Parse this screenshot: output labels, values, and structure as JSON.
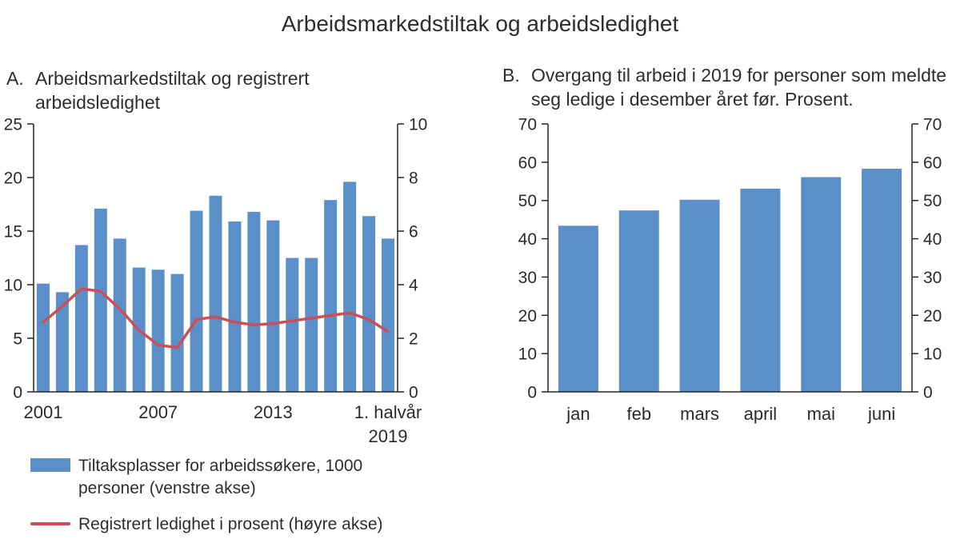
{
  "title": "Arbeidsmarkedstiltak og arbeidsledighet",
  "panel_a": {
    "letter": "A.",
    "heading": "Arbeidsmarkedstiltak og registrert arbeidsledighet"
  },
  "panel_b": {
    "letter": "B.",
    "heading": "Overgang til arbeid i 2019 for personer som meldte seg ledige i desember året før. Prosent."
  },
  "legend": {
    "bar": {
      "label": "Tiltaksplasser for arbeidssøkere, 1000 personer (venstre akse)",
      "color": "#5b8fc9"
    },
    "line": {
      "label": "Registrert ledighet i prosent (høyre akse)",
      "color": "#cb4f55"
    }
  },
  "style": {
    "axis_color": "#262626",
    "text_color": "#2b2b2b",
    "bar_color": "#5b8fc9",
    "line_color": "#cb4f55",
    "background": "#ffffff"
  },
  "chart_data": [
    {
      "id": "A",
      "type": "bar",
      "title": "A. Arbeidsmarkedstiltak og registrert arbeidsledighet",
      "x": [
        2001,
        2002,
        2003,
        2004,
        2005,
        2006,
        2007,
        2008,
        2009,
        2010,
        2011,
        2012,
        2013,
        2014,
        2015,
        2016,
        2017,
        2018,
        2019
      ],
      "series": [
        {
          "name": "Tiltaksplasser for arbeidssøkere, 1000 personer (venstre akse)",
          "type": "bar",
          "axis": "left",
          "color": "#5b8fc9",
          "values": [
            10.1,
            9.3,
            13.7,
            17.1,
            14.3,
            11.6,
            11.4,
            11.0,
            16.9,
            18.3,
            15.9,
            16.8,
            16.0,
            12.5,
            12.5,
            17.9,
            19.6,
            16.4,
            14.3
          ]
        },
        {
          "name": "Registrert ledighet i prosent (høyre akse)",
          "type": "line",
          "axis": "right",
          "color": "#cb4f55",
          "values": [
            2.6,
            3.2,
            3.85,
            3.75,
            3.1,
            2.3,
            1.75,
            1.65,
            2.7,
            2.8,
            2.6,
            2.5,
            2.55,
            2.65,
            2.75,
            2.85,
            2.95,
            2.7,
            2.25
          ]
        }
      ],
      "left_axis": {
        "min": 0,
        "max": 25,
        "ticks": [
          0,
          5,
          10,
          15,
          20,
          25
        ]
      },
      "right_axis": {
        "min": 0,
        "max": 10,
        "ticks": [
          0,
          2,
          4,
          6,
          8,
          10
        ]
      },
      "x_tick_labels": [
        {
          "index": 0,
          "lines": [
            "2001"
          ]
        },
        {
          "index": 6,
          "lines": [
            "2007"
          ]
        },
        {
          "index": 12,
          "lines": [
            "2013"
          ]
        },
        {
          "index": 18,
          "lines": [
            "1. halvår",
            "2019"
          ]
        }
      ],
      "grid": false,
      "legend_position": "below-left"
    },
    {
      "id": "B",
      "type": "bar",
      "title": "B. Overgang til arbeid i 2019 for personer som meldte seg ledige i desember året før. Prosent.",
      "categories": [
        "jan",
        "feb",
        "mars",
        "april",
        "mai",
        "juni"
      ],
      "values": [
        43.4,
        47.4,
        50.2,
        53.1,
        56.1,
        58.3
      ],
      "bar_color": "#5b8fc9",
      "left_axis": {
        "min": 0,
        "max": 70,
        "ticks": [
          0,
          10,
          20,
          30,
          40,
          50,
          60,
          70
        ]
      },
      "right_axis": {
        "min": 0,
        "max": 70,
        "ticks": [
          0,
          10,
          20,
          30,
          40,
          50,
          60,
          70
        ]
      },
      "grid": false
    }
  ]
}
